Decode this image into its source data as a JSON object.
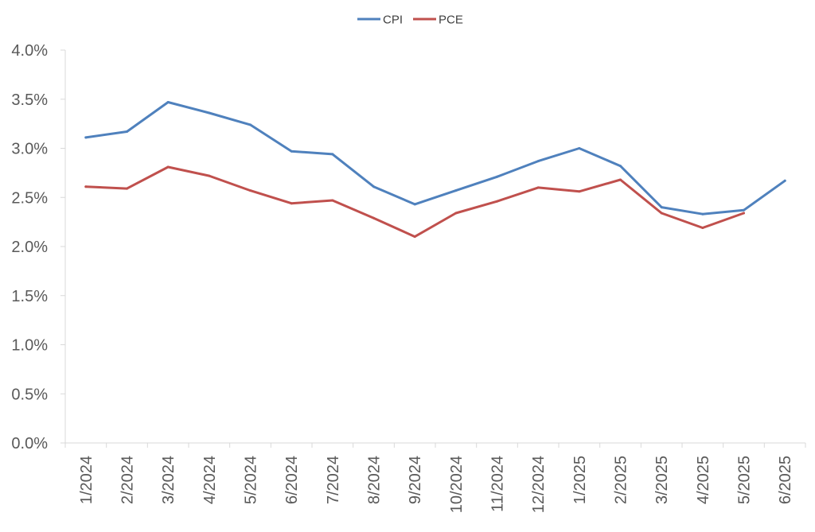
{
  "chart_data": {
    "type": "line",
    "title": "",
    "xlabel": "",
    "ylabel": "",
    "categories": [
      "1/2024",
      "2/2024",
      "3/2024",
      "4/2024",
      "5/2024",
      "6/2024",
      "7/2024",
      "8/2024",
      "9/2024",
      "10/2024",
      "11/2024",
      "12/2024",
      "1/2025",
      "2/2025",
      "3/2025",
      "4/2025",
      "5/2025",
      "6/2025"
    ],
    "series": [
      {
        "name": "CPI",
        "color": "#4f81bd",
        "values": [
          3.11,
          3.17,
          3.47,
          3.36,
          3.24,
          2.97,
          2.94,
          2.61,
          2.43,
          2.57,
          2.71,
          2.87,
          3.0,
          2.82,
          2.4,
          2.33,
          2.37,
          2.67
        ]
      },
      {
        "name": "PCE",
        "color": "#c0504d",
        "values": [
          2.61,
          2.59,
          2.81,
          2.72,
          2.57,
          2.44,
          2.47,
          2.29,
          2.1,
          2.34,
          2.46,
          2.6,
          2.56,
          2.68,
          2.34,
          2.19,
          2.34,
          null
        ]
      }
    ],
    "ylim": [
      0,
      4
    ],
    "y_ticks": [
      "0.0%",
      "0.5%",
      "1.0%",
      "1.5%",
      "2.0%",
      "2.5%",
      "3.0%",
      "3.5%",
      "4.0%"
    ],
    "grid": false,
    "legend_position": "top-center"
  }
}
